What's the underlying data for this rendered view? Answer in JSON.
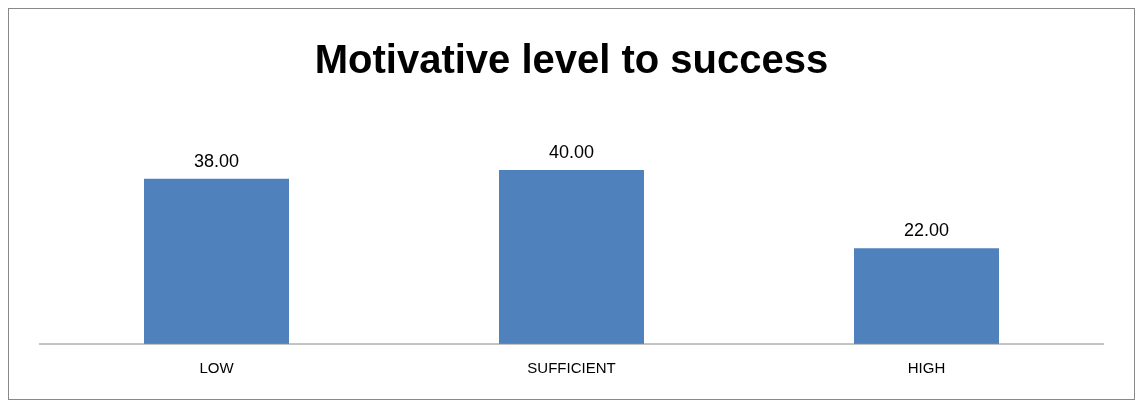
{
  "chart_data": {
    "type": "bar",
    "title": "Motivative level to success",
    "categories": [
      "LOW",
      "SUFFICIENT",
      "HIGH"
    ],
    "values": [
      38,
      40,
      22
    ],
    "value_labels": [
      "38.00",
      "40.00",
      "22.00"
    ],
    "color": "#4f81bd",
    "grid": false,
    "legend": false
  }
}
